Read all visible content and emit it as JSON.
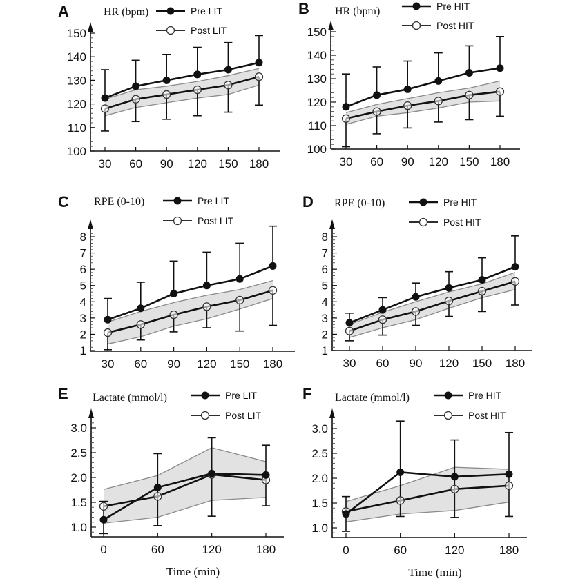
{
  "chart_data": [
    {
      "panel": "A",
      "type": "line",
      "ylabel": "HR (bpm)",
      "xlabel": "",
      "x": [
        30,
        60,
        90,
        120,
        150,
        180
      ],
      "xticks": [
        "30",
        "60",
        "90",
        "120",
        "150",
        "180"
      ],
      "yticks": [
        "100",
        "110",
        "120",
        "130",
        "140",
        "150"
      ],
      "ylim": [
        100,
        150
      ],
      "xlim": [
        15,
        210
      ],
      "legend": [
        "Pre LIT",
        "Post LIT"
      ],
      "legend_position": "top",
      "series": [
        {
          "name": "Pre LIT",
          "marker": "filled",
          "values": [
            122.5,
            127.5,
            130,
            132.5,
            134.5,
            137.5
          ],
          "error_upper": [
            134.5,
            138.5,
            141,
            144,
            146,
            149
          ]
        },
        {
          "name": "Post LIT",
          "marker": "open",
          "values": [
            118,
            122,
            124,
            126,
            128,
            131.5
          ],
          "error_lower": [
            108.5,
            112.5,
            113.5,
            115,
            116.5,
            119.5
          ]
        }
      ],
      "band": {
        "upper": [
          122,
          126,
          127.5,
          129.5,
          132,
          135
        ],
        "lower": [
          115,
          118.5,
          120.5,
          122.5,
          124,
          128
        ]
      }
    },
    {
      "panel": "B",
      "type": "line",
      "ylabel": "HR (bpm)",
      "xlabel": "",
      "x": [
        30,
        60,
        90,
        120,
        150,
        180
      ],
      "xticks": [
        "30",
        "60",
        "90",
        "120",
        "150",
        "180"
      ],
      "yticks": [
        "100",
        "110",
        "120",
        "130",
        "140",
        "150"
      ],
      "ylim": [
        100,
        150
      ],
      "xlim": [
        15,
        210
      ],
      "legend": [
        "Pre HIT",
        "Post HIT"
      ],
      "legend_position": "top",
      "series": [
        {
          "name": "Pre HIT",
          "marker": "filled",
          "values": [
            118,
            123,
            125.5,
            129,
            132.5,
            134.5
          ],
          "error_upper": [
            132,
            135,
            137.5,
            141,
            144,
            148
          ]
        },
        {
          "name": "Post HIT",
          "marker": "open",
          "values": [
            113,
            116,
            118.5,
            120.5,
            123,
            124.5
          ],
          "error_lower": [
            101,
            106.5,
            109,
            111.5,
            112.5,
            114
          ]
        }
      ],
      "band": {
        "upper": [
          115.5,
          119,
          121.5,
          124,
          126,
          129
        ],
        "lower": [
          110.5,
          114,
          115.5,
          117.5,
          120,
          120.5
        ]
      }
    },
    {
      "panel": "C",
      "type": "line",
      "ylabel": "RPE (0-10)",
      "xlabel": "",
      "x": [
        30,
        60,
        90,
        120,
        150,
        180
      ],
      "xticks": [
        "30",
        "60",
        "90",
        "120",
        "150",
        "180"
      ],
      "yticks": [
        "1",
        "2",
        "3",
        "4",
        "5",
        "6",
        "7",
        "8"
      ],
      "ylim": [
        1,
        9
      ],
      "xlim": [
        15,
        210
      ],
      "legend": [
        "Pre LIT",
        "Post LIT"
      ],
      "legend_position": "top",
      "series": [
        {
          "name": "Pre LIT",
          "marker": "filled",
          "values": [
            2.9,
            3.6,
            4.5,
            5.0,
            5.4,
            6.2
          ],
          "error_upper": [
            4.2,
            5.2,
            6.5,
            7.05,
            7.6,
            8.65
          ]
        },
        {
          "name": "Post LIT",
          "marker": "open",
          "values": [
            2.1,
            2.6,
            3.2,
            3.7,
            4.1,
            4.7
          ],
          "error_lower": [
            1.05,
            1.65,
            2.15,
            2.4,
            2.2,
            2.55
          ]
        }
      ],
      "band": {
        "upper": [
          2.75,
          3.4,
          3.95,
          4.4,
          4.75,
          5.3
        ],
        "lower": [
          1.4,
          1.85,
          2.5,
          2.95,
          3.55,
          4.2
        ]
      }
    },
    {
      "panel": "D",
      "type": "line",
      "ylabel": "RPE (0-10)",
      "xlabel": "",
      "x": [
        30,
        60,
        90,
        120,
        150,
        180
      ],
      "xticks": [
        "30",
        "60",
        "90",
        "120",
        "150",
        "180"
      ],
      "yticks": [
        "1",
        "2",
        "3",
        "4",
        "5",
        "6",
        "7",
        "8"
      ],
      "ylim": [
        1,
        9
      ],
      "xlim": [
        15,
        210
      ],
      "legend": [
        "Pre HIT",
        "Post HIT"
      ],
      "legend_position": "top",
      "series": [
        {
          "name": "Pre HIT",
          "marker": "filled",
          "values": [
            2.7,
            3.5,
            4.3,
            4.85,
            5.35,
            6.15
          ],
          "error_upper": [
            3.3,
            4.25,
            5.15,
            5.85,
            6.7,
            8.05
          ]
        },
        {
          "name": "Post HIT",
          "marker": "open",
          "values": [
            2.2,
            2.9,
            3.4,
            4.05,
            4.65,
            5.25
          ],
          "error_lower": [
            1.6,
            1.95,
            2.55,
            3.1,
            3.4,
            3.8
          ]
        }
      ],
      "band": {
        "upper": [
          2.6,
          3.35,
          4.0,
          4.6,
          5.1,
          5.8
        ],
        "lower": [
          1.8,
          2.4,
          2.9,
          3.6,
          4.25,
          4.75
        ]
      }
    },
    {
      "panel": "E",
      "type": "line",
      "ylabel": "Lactate (mmol/l)",
      "xlabel": "Time (min)",
      "x": [
        0,
        60,
        120,
        180
      ],
      "xticks": [
        "0",
        "60",
        "120",
        "180"
      ],
      "yticks": [
        "1.0",
        "1.5",
        "2.0",
        "2.5",
        "3.0"
      ],
      "ylim": [
        0.8,
        3.3
      ],
      "xlim": [
        -15,
        200
      ],
      "legend": [
        "Pre LIT",
        "Post LIT"
      ],
      "legend_position": "top",
      "series": [
        {
          "name": "Pre LIT",
          "marker": "filled",
          "values": [
            1.15,
            1.8,
            2.08,
            2.05
          ],
          "error_upper": [
            1.52,
            2.48,
            2.8,
            2.65
          ],
          "error_lower": [
            0.87,
            1.03,
            1.22,
            1.43
          ]
        },
        {
          "name": "Post LIT",
          "marker": "open",
          "values": [
            1.42,
            1.62,
            2.06,
            1.95
          ]
        }
      ],
      "band": {
        "upper": [
          1.76,
          2.04,
          2.6,
          2.32
        ],
        "lower": [
          1.08,
          1.2,
          1.54,
          1.6
        ]
      }
    },
    {
      "panel": "F",
      "type": "line",
      "ylabel": "Lactate (mmol/l)",
      "xlabel": "Time (min)",
      "x": [
        0,
        60,
        120,
        180
      ],
      "xticks": [
        "0",
        "60",
        "120",
        "180"
      ],
      "yticks": [
        "1.0",
        "1.5",
        "2.0",
        "2.5",
        "3.0"
      ],
      "ylim": [
        0.8,
        3.3
      ],
      "xlim": [
        -15,
        200
      ],
      "legend": [
        "Pre HIT",
        "Post HIT"
      ],
      "legend_position": "top",
      "series": [
        {
          "name": "Pre HIT",
          "marker": "filled",
          "values": [
            1.28,
            2.12,
            2.03,
            2.08
          ],
          "error_upper": [
            1.63,
            3.15,
            2.77,
            2.92
          ],
          "error_lower": [
            0.93,
            1.23,
            1.21,
            1.23
          ]
        },
        {
          "name": "Post HIT",
          "marker": "open",
          "values": [
            1.33,
            1.55,
            1.78,
            1.85
          ]
        }
      ],
      "band": {
        "upper": [
          1.53,
          1.85,
          2.22,
          2.18
        ],
        "lower": [
          1.12,
          1.28,
          1.35,
          1.52
        ]
      }
    }
  ],
  "colors": {
    "line": "#111111",
    "band_fill": "#e2e2e2",
    "band_edge": "#8a8a8a"
  }
}
